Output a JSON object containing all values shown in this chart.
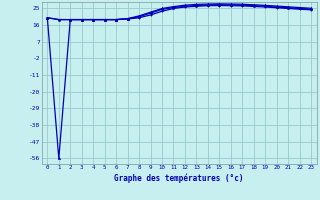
{
  "xlabel": "Graphe des températures (°c)",
  "hours": [
    0,
    1,
    2,
    3,
    4,
    5,
    6,
    7,
    8,
    9,
    10,
    11,
    12,
    13,
    14,
    15,
    16,
    17,
    18,
    19,
    20,
    21,
    22,
    23
  ],
  "line1": [
    20.0,
    -56.0,
    19.0,
    19.0,
    19.0,
    19.0,
    19.0,
    19.5,
    21.0,
    23.0,
    25.0,
    26.0,
    26.8,
    27.2,
    27.4,
    27.5,
    27.4,
    27.3,
    27.0,
    26.7,
    26.3,
    25.9,
    25.5,
    25.1
  ],
  "line2": [
    20.0,
    19.0,
    19.0,
    19.0,
    19.0,
    19.0,
    19.0,
    19.5,
    20.5,
    22.5,
    24.5,
    25.5,
    26.2,
    26.6,
    26.9,
    27.0,
    26.9,
    26.8,
    26.5,
    26.2,
    25.8,
    25.4,
    25.0,
    24.6
  ],
  "line3": [
    20.0,
    19.0,
    19.0,
    19.0,
    19.0,
    19.0,
    19.0,
    19.3,
    20.0,
    21.5,
    23.5,
    25.0,
    25.8,
    26.2,
    26.5,
    26.6,
    26.5,
    26.4,
    26.1,
    25.8,
    25.4,
    25.0,
    24.6,
    24.3
  ],
  "bg_color": "#c8efef",
  "grid_color": "#99cccc",
  "line_color": "#0000bb",
  "yticks": [
    25,
    16,
    7,
    -2,
    -11,
    -20,
    -29,
    -38,
    -47,
    -56
  ],
  "xticks": [
    0,
    1,
    2,
    3,
    4,
    5,
    6,
    7,
    8,
    9,
    10,
    11,
    12,
    13,
    14,
    15,
    16,
    17,
    18,
    19,
    20,
    21,
    22,
    23
  ],
  "ylim": [
    -59,
    28.5
  ],
  "xlim": [
    -0.5,
    23.5
  ]
}
